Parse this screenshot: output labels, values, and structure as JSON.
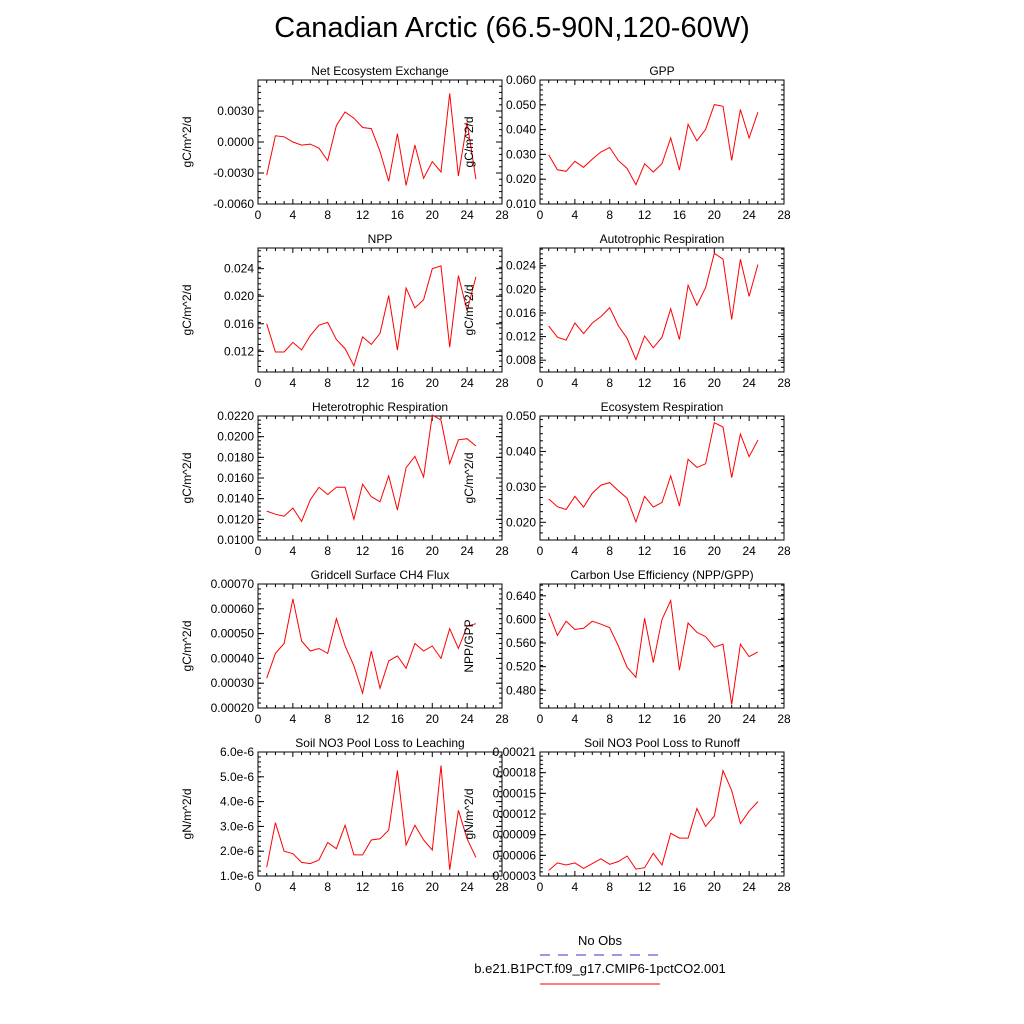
{
  "title": "Canadian Arctic (66.5-90N,120-60W)",
  "colors": {
    "model_line": "#ff0000",
    "obs_line": "#3333cc",
    "axes": "#000000"
  },
  "legend": {
    "obs_label": "No Obs",
    "model_label": "b.e21.B1PCT.f09_g17.CMIP6-1pctCO2.001"
  },
  "chart_data": [
    {
      "type": "line",
      "title": "Net Ecosystem Exchange",
      "ylabel": "gC/m^2/d",
      "xlim": [
        0,
        28
      ],
      "ylim": [
        -0.006,
        0.006
      ],
      "x_ticks": [
        "0",
        "4",
        "8",
        "12",
        "16",
        "20",
        "24",
        "28"
      ],
      "y_ticks": [
        "-0.0060",
        "-0.0030",
        "0.0000",
        "0.0030"
      ],
      "y_tick_values": [
        -0.006,
        -0.003,
        0.0,
        0.003
      ],
      "series": [
        {
          "x": [
            1,
            2,
            3,
            4,
            5,
            6,
            7,
            8,
            9,
            10,
            11,
            12,
            13,
            14,
            15,
            16,
            17,
            18,
            19,
            20,
            21,
            22,
            23,
            24,
            25
          ],
          "values": [
            -0.0032,
            0.0006,
            0.0005,
            0.0,
            -0.0003,
            -0.0002,
            -0.0006,
            -0.0018,
            0.0016,
            0.0029,
            0.0023,
            0.0014,
            0.0013,
            -0.0009,
            -0.0038,
            0.0008,
            -0.0042,
            -0.0003,
            -0.0035,
            -0.0019,
            -0.0029,
            0.0047,
            -0.0033,
            0.0019,
            -0.0036
          ]
        }
      ]
    },
    {
      "type": "line",
      "title": "GPP",
      "ylabel": "gC/m^2/d",
      "xlim": [
        0,
        28
      ],
      "ylim": [
        0.01,
        0.06
      ],
      "x_ticks": [
        "0",
        "4",
        "8",
        "12",
        "16",
        "20",
        "24",
        "28"
      ],
      "y_ticks": [
        "0.010",
        "0.020",
        "0.030",
        "0.040",
        "0.050",
        "0.060"
      ],
      "y_tick_values": [
        0.01,
        0.02,
        0.03,
        0.04,
        0.05,
        0.06
      ],
      "series": [
        {
          "x": [
            1,
            2,
            3,
            4,
            5,
            6,
            7,
            8,
            9,
            10,
            11,
            12,
            13,
            14,
            15,
            16,
            17,
            18,
            19,
            20,
            21,
            22,
            23,
            24,
            25
          ],
          "values": [
            0.0298,
            0.0238,
            0.0232,
            0.0272,
            0.0248,
            0.0281,
            0.031,
            0.0328,
            0.0275,
            0.0243,
            0.0178,
            0.0262,
            0.0229,
            0.0263,
            0.0366,
            0.0237,
            0.0421,
            0.0355,
            0.0401,
            0.0501,
            0.0494,
            0.0276,
            0.0481,
            0.0366,
            0.047
          ]
        }
      ]
    },
    {
      "type": "line",
      "title": "NPP",
      "ylabel": "gC/m^2/d",
      "xlim": [
        0,
        28
      ],
      "ylim": [
        0.009,
        0.027
      ],
      "x_ticks": [
        "0",
        "4",
        "8",
        "12",
        "16",
        "20",
        "24",
        "28"
      ],
      "y_ticks": [
        "0.012",
        "0.016",
        "0.020",
        "0.024"
      ],
      "y_tick_values": [
        0.012,
        0.016,
        0.02,
        0.024
      ],
      "series": [
        {
          "x": [
            1,
            2,
            3,
            4,
            5,
            6,
            7,
            8,
            9,
            10,
            11,
            12,
            13,
            14,
            15,
            16,
            17,
            18,
            19,
            20,
            21,
            22,
            23,
            24,
            25
          ],
          "values": [
            0.016,
            0.0119,
            0.0119,
            0.0133,
            0.0122,
            0.0143,
            0.0158,
            0.0162,
            0.0137,
            0.0124,
            0.0099,
            0.0141,
            0.013,
            0.0146,
            0.0201,
            0.0122,
            0.0212,
            0.0183,
            0.0195,
            0.024,
            0.0244,
            0.0126,
            0.023,
            0.0179,
            0.0228
          ]
        }
      ]
    },
    {
      "type": "line",
      "title": "Autotrophic Respiration",
      "ylabel": "gC/m^2/d",
      "xlim": [
        0,
        28
      ],
      "ylim": [
        0.006,
        0.027
      ],
      "x_ticks": [
        "0",
        "4",
        "8",
        "12",
        "16",
        "20",
        "24",
        "28"
      ],
      "y_ticks": [
        "0.008",
        "0.012",
        "0.016",
        "0.020",
        "0.024"
      ],
      "y_tick_values": [
        0.008,
        0.012,
        0.016,
        0.02,
        0.024
      ],
      "series": [
        {
          "x": [
            1,
            2,
            3,
            4,
            5,
            6,
            7,
            8,
            9,
            10,
            11,
            12,
            13,
            14,
            15,
            16,
            17,
            18,
            19,
            20,
            21,
            22,
            23,
            24,
            25
          ],
          "values": [
            0.0138,
            0.0119,
            0.0114,
            0.0143,
            0.0125,
            0.0143,
            0.0154,
            0.0169,
            0.0138,
            0.0117,
            0.0081,
            0.0121,
            0.0101,
            0.0119,
            0.0167,
            0.0115,
            0.0207,
            0.0173,
            0.0203,
            0.0261,
            0.0251,
            0.0149,
            0.0251,
            0.0188,
            0.0242
          ]
        }
      ]
    },
    {
      "type": "line",
      "title": "Heterotrophic Respiration",
      "ylabel": "gC/m^2/d",
      "xlim": [
        0,
        28
      ],
      "ylim": [
        0.01,
        0.022
      ],
      "x_ticks": [
        "0",
        "4",
        "8",
        "12",
        "16",
        "20",
        "24",
        "28"
      ],
      "y_ticks": [
        "0.0100",
        "0.0120",
        "0.0140",
        "0.0160",
        "0.0180",
        "0.0200",
        "0.0220"
      ],
      "y_tick_values": [
        0.01,
        0.012,
        0.014,
        0.016,
        0.018,
        0.02,
        0.022
      ],
      "series": [
        {
          "x": [
            1,
            2,
            3,
            4,
            5,
            6,
            7,
            8,
            9,
            10,
            11,
            12,
            13,
            14,
            15,
            16,
            17,
            18,
            19,
            20,
            21,
            22,
            23,
            24,
            25
          ],
          "values": [
            0.0128,
            0.0125,
            0.0123,
            0.0131,
            0.0118,
            0.0139,
            0.0151,
            0.0144,
            0.0151,
            0.0151,
            0.012,
            0.0154,
            0.0142,
            0.0137,
            0.0162,
            0.0129,
            0.017,
            0.0181,
            0.0161,
            0.0221,
            0.0216,
            0.0174,
            0.0197,
            0.0198,
            0.0191
          ]
        }
      ]
    },
    {
      "type": "line",
      "title": "Ecosystem Respiration",
      "ylabel": "gC/m^2/d",
      "xlim": [
        0,
        28
      ],
      "ylim": [
        0.015,
        0.05
      ],
      "x_ticks": [
        "0",
        "4",
        "8",
        "12",
        "16",
        "20",
        "24",
        "28"
      ],
      "y_ticks": [
        "0.020",
        "0.030",
        "0.040",
        "0.050"
      ],
      "y_tick_values": [
        0.02,
        0.03,
        0.04,
        0.05
      ],
      "series": [
        {
          "x": [
            1,
            2,
            3,
            4,
            5,
            6,
            7,
            8,
            9,
            10,
            11,
            12,
            13,
            14,
            15,
            16,
            17,
            18,
            19,
            20,
            21,
            22,
            23,
            24,
            25
          ],
          "values": [
            0.0266,
            0.0244,
            0.0236,
            0.0273,
            0.0243,
            0.0282,
            0.0305,
            0.0312,
            0.0289,
            0.0268,
            0.0201,
            0.0273,
            0.0243,
            0.0256,
            0.0331,
            0.0246,
            0.0378,
            0.0355,
            0.0365,
            0.0481,
            0.0469,
            0.0326,
            0.0449,
            0.0385,
            0.0432
          ]
        }
      ]
    },
    {
      "type": "line",
      "title": "Gridcell Surface CH4 Flux",
      "ylabel": "gC/m^2/d",
      "xlim": [
        0,
        28
      ],
      "ylim": [
        0.0002,
        0.0007
      ],
      "x_ticks": [
        "0",
        "4",
        "8",
        "12",
        "16",
        "20",
        "24",
        "28"
      ],
      "y_ticks": [
        "0.00020",
        "0.00030",
        "0.00040",
        "0.00050",
        "0.00060",
        "0.00070"
      ],
      "y_tick_values": [
        0.0002,
        0.0003,
        0.0004,
        0.0005,
        0.0006,
        0.0007
      ],
      "series": [
        {
          "x": [
            1,
            2,
            3,
            4,
            5,
            6,
            7,
            8,
            9,
            10,
            11,
            12,
            13,
            14,
            15,
            16,
            17,
            18,
            19,
            20,
            21,
            22,
            23,
            24,
            25
          ],
          "values": [
            0.00032,
            0.00042,
            0.00046,
            0.00064,
            0.00047,
            0.00043,
            0.00044,
            0.00042,
            0.00056,
            0.00045,
            0.00037,
            0.00026,
            0.00043,
            0.00028,
            0.00039,
            0.00041,
            0.00036,
            0.00046,
            0.00043,
            0.00045,
            0.0004,
            0.00052,
            0.00044,
            0.00053,
            0.00054
          ]
        }
      ]
    },
    {
      "type": "line",
      "title": "Carbon Use Efficiency (NPP/GPP)",
      "ylabel": "NPP/GPP",
      "xlim": [
        0,
        28
      ],
      "ylim": [
        0.45,
        0.66
      ],
      "x_ticks": [
        "0",
        "4",
        "8",
        "12",
        "16",
        "20",
        "24",
        "28"
      ],
      "y_ticks": [
        "0.480",
        "0.520",
        "0.560",
        "0.600",
        "0.640"
      ],
      "y_tick_values": [
        0.48,
        0.52,
        0.56,
        0.6,
        0.64
      ],
      "series": [
        {
          "x": [
            1,
            2,
            3,
            4,
            5,
            6,
            7,
            8,
            9,
            10,
            11,
            12,
            13,
            14,
            15,
            16,
            17,
            18,
            19,
            20,
            21,
            22,
            23,
            24,
            25
          ],
          "values": [
            0.611,
            0.573,
            0.597,
            0.583,
            0.585,
            0.597,
            0.592,
            0.586,
            0.555,
            0.519,
            0.502,
            0.602,
            0.527,
            0.6,
            0.632,
            0.514,
            0.594,
            0.578,
            0.571,
            0.553,
            0.558,
            0.456,
            0.558,
            0.537,
            0.545
          ]
        }
      ]
    },
    {
      "type": "line",
      "title": "Soil NO3 Pool Loss to Leaching",
      "ylabel": "gN/m^2/d",
      "xlim": [
        0,
        28
      ],
      "ylim": [
        1e-06,
        6e-06
      ],
      "x_ticks": [
        "0",
        "4",
        "8",
        "12",
        "16",
        "20",
        "24",
        "28"
      ],
      "y_ticks": [
        "1.0e-6",
        "2.0e-6",
        "3.0e-6",
        "4.0e-6",
        "5.0e-6",
        "6.0e-6"
      ],
      "y_tick_values": [
        1e-06,
        2e-06,
        3e-06,
        4e-06,
        5e-06,
        6e-06
      ],
      "series": [
        {
          "x": [
            1,
            2,
            3,
            4,
            5,
            6,
            7,
            8,
            9,
            10,
            11,
            12,
            13,
            14,
            15,
            16,
            17,
            18,
            19,
            20,
            21,
            22,
            23,
            24,
            25
          ],
          "values": [
            1.35e-06,
            3.15e-06,
            2e-06,
            1.9e-06,
            1.55e-06,
            1.5e-06,
            1.65e-06,
            2.35e-06,
            2.1e-06,
            3.05e-06,
            1.85e-06,
            1.85e-06,
            2.45e-06,
            2.5e-06,
            2.85e-06,
            5.25e-06,
            2.25e-06,
            3.05e-06,
            2.45e-06,
            2.05e-06,
            5.45e-06,
            1.25e-06,
            3.65e-06,
            2.5e-06,
            1.75e-06
          ]
        }
      ]
    },
    {
      "type": "line",
      "title": "Soil NO3 Pool Loss to Runoff",
      "ylabel": "gN/m^2/d",
      "xlim": [
        0,
        28
      ],
      "ylim": [
        3e-05,
        0.00021
      ],
      "x_ticks": [
        "0",
        "4",
        "8",
        "12",
        "16",
        "20",
        "24",
        "28"
      ],
      "y_ticks": [
        "0.00003",
        "0.00006",
        "0.00009",
        "0.00012",
        "0.00015",
        "0.00018",
        "0.00021"
      ],
      "y_tick_values": [
        3e-05,
        6e-05,
        9e-05,
        0.00012,
        0.00015,
        0.00018,
        0.00021
      ],
      "series": [
        {
          "x": [
            1,
            2,
            3,
            4,
            5,
            6,
            7,
            8,
            9,
            10,
            11,
            12,
            13,
            14,
            15,
            16,
            17,
            18,
            19,
            20,
            21,
            22,
            23,
            24,
            25
          ],
          "values": [
            3.8e-05,
            4.9e-05,
            4.6e-05,
            4.9e-05,
            4.1e-05,
            4.8e-05,
            5.5e-05,
            4.7e-05,
            5.1e-05,
            5.9e-05,
            4e-05,
            4.2e-05,
            6.3e-05,
            4.6e-05,
            9.2e-05,
            8.5e-05,
            8.5e-05,
            0.000128,
            0.000102,
            0.000117,
            0.000183,
            0.000154,
            0.000106,
            0.000124,
            0.000138
          ]
        }
      ]
    }
  ]
}
